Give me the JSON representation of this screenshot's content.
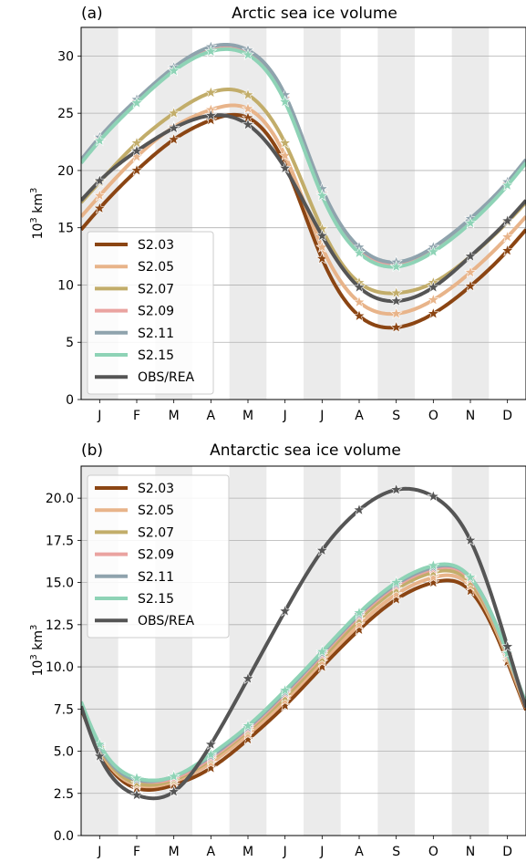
{
  "chart_data": [
    {
      "type": "line",
      "panel_label": "(a)",
      "title": "Arctic sea ice volume",
      "ylabel_base": "10",
      "ylabel_exp": "3",
      "ylabel_unit": "km",
      "ylabel_unit_exp": "3",
      "categories": [
        "J",
        "F",
        "M",
        "A",
        "M",
        "J",
        "J",
        "A",
        "S",
        "O",
        "N",
        "D"
      ],
      "yticks": [
        "0",
        "5",
        "10",
        "15",
        "20",
        "25",
        "30"
      ],
      "ylim": [
        0,
        32.5
      ],
      "grid": true,
      "legend_position": "lower-left",
      "series": [
        {
          "name": "S2.03",
          "color": "#8b4513",
          "values": [
            16.7,
            20.0,
            22.7,
            24.4,
            24.6,
            20.5,
            12.3,
            7.3,
            6.3,
            7.5,
            9.9,
            13.0
          ]
        },
        {
          "name": "S2.05",
          "color": "#e8b48a",
          "values": [
            17.8,
            21.2,
            23.8,
            25.3,
            25.4,
            21.3,
            13.3,
            8.5,
            7.5,
            8.7,
            11.1,
            14.2
          ]
        },
        {
          "name": "S2.07",
          "color": "#c2ad6a",
          "values": [
            19.0,
            22.4,
            25.0,
            26.8,
            26.6,
            22.4,
            14.9,
            10.2,
            9.3,
            10.2,
            12.5,
            15.5
          ]
        },
        {
          "name": "S2.09",
          "color": "#eaa3a0",
          "values": [
            22.8,
            26.0,
            28.8,
            30.5,
            30.2,
            26.3,
            18.0,
            13.0,
            11.7,
            13.0,
            15.5,
            18.8
          ]
        },
        {
          "name": "S2.11",
          "color": "#8fa3ad",
          "values": [
            22.9,
            26.2,
            29.0,
            30.8,
            30.5,
            26.6,
            18.4,
            13.3,
            12.0,
            13.3,
            15.8,
            19.0
          ]
        },
        {
          "name": "S2.15",
          "color": "#8ed3b6",
          "values": [
            22.6,
            25.9,
            28.7,
            30.4,
            30.1,
            26.0,
            17.8,
            12.8,
            11.6,
            12.9,
            15.4,
            18.7
          ]
        },
        {
          "name": "OBS/REA",
          "color": "#555555",
          "values": [
            19.1,
            21.7,
            23.7,
            24.8,
            24.0,
            20.2,
            14.3,
            9.8,
            8.6,
            9.8,
            12.5,
            15.6
          ]
        }
      ]
    },
    {
      "type": "line",
      "panel_label": "(b)",
      "title": "Antarctic sea ice volume",
      "ylabel_base": "10",
      "ylabel_exp": "3",
      "ylabel_unit": "km",
      "ylabel_unit_exp": "3",
      "categories": [
        "J",
        "F",
        "M",
        "A",
        "M",
        "J",
        "J",
        "A",
        "S",
        "O",
        "N",
        "D"
      ],
      "yticks": [
        "0.0",
        "2.5",
        "5.0",
        "7.5",
        "10.0",
        "12.5",
        "15.0",
        "17.5",
        "20.0"
      ],
      "ylim": [
        0,
        21.9
      ],
      "grid": true,
      "legend_position": "upper-left",
      "series": [
        {
          "name": "S2.03",
          "color": "#8b4513",
          "values": [
            5.0,
            2.8,
            3.0,
            4.0,
            5.7,
            7.7,
            10.0,
            12.2,
            14.0,
            15.0,
            14.5,
            10.3
          ]
        },
        {
          "name": "S2.05",
          "color": "#e8b48a",
          "values": [
            5.1,
            3.0,
            3.2,
            4.3,
            6.0,
            8.0,
            10.3,
            12.5,
            14.3,
            15.3,
            14.8,
            10.5
          ]
        },
        {
          "name": "S2.07",
          "color": "#c2ad6a",
          "values": [
            5.2,
            3.1,
            3.3,
            4.5,
            6.2,
            8.2,
            10.5,
            12.8,
            14.6,
            15.6,
            15.0,
            10.6
          ]
        },
        {
          "name": "S2.09",
          "color": "#eaa3a0",
          "values": [
            5.3,
            3.3,
            3.4,
            4.6,
            6.3,
            8.4,
            10.7,
            13.0,
            14.8,
            15.8,
            15.2,
            10.7
          ]
        },
        {
          "name": "S2.11",
          "color": "#8fa3ad",
          "values": [
            5.3,
            3.3,
            3.5,
            4.7,
            6.4,
            8.5,
            10.8,
            13.1,
            14.9,
            15.9,
            15.3,
            10.8
          ]
        },
        {
          "name": "S2.15",
          "color": "#8ed3b6",
          "values": [
            5.4,
            3.4,
            3.5,
            4.8,
            6.5,
            8.6,
            10.9,
            13.2,
            15.0,
            16.0,
            15.3,
            10.8
          ]
        },
        {
          "name": "OBS/REA",
          "color": "#555555",
          "values": [
            4.7,
            2.4,
            2.6,
            5.4,
            9.3,
            13.3,
            16.9,
            19.3,
            20.5,
            20.1,
            17.5,
            11.2
          ]
        }
      ]
    }
  ]
}
